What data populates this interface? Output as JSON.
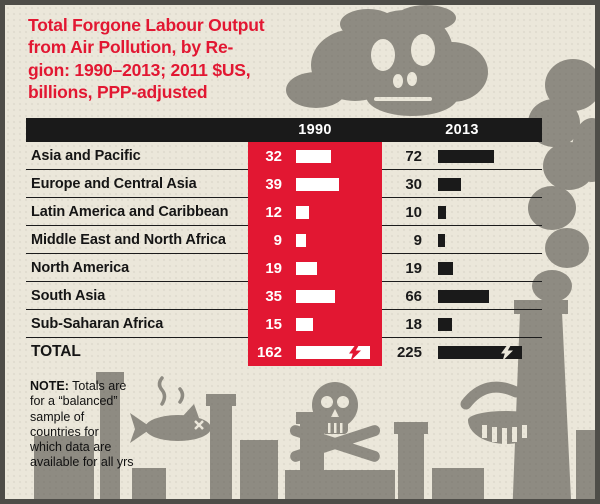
{
  "title_lines": [
    "Total Forgone Labour Output",
    "from Air Pollution, by Re-",
    "gion: 1990–2013; 2011 $US,",
    "billions, PPP-adjusted"
  ],
  "note": {
    "label": "NOTE:",
    "text": "Totals are for a “balanced” sample of countries for which data are available for all yrs"
  },
  "chart_data": {
    "type": "bar",
    "title": "Total Forgone Labour Output from Air Pollution, by Region: 1990–2013; 2011 $US, billions, PPP-adjusted",
    "columns": [
      "1990",
      "2013"
    ],
    "categories": [
      "Asia and Pacific",
      "Europe and Central Asia",
      "Latin America and Caribbean",
      "Middle East and North Africa",
      "North America",
      "South Asia",
      "Sub-Saharan Africa"
    ],
    "series": [
      {
        "name": "1990",
        "values": [
          32,
          39,
          12,
          9,
          19,
          35,
          15
        ]
      },
      {
        "name": "2013",
        "values": [
          72,
          30,
          10,
          9,
          19,
          66,
          18
        ]
      }
    ],
    "total": {
      "label": "TOTAL",
      "v1990": 162,
      "v2013": 225,
      "bars_truncated": true
    },
    "legend_position": "column headers",
    "grid": false
  },
  "icons": {
    "smoke_skull": "smoke-skull-icon",
    "skull_crossbones": "skull-crossbones-icon",
    "dead_fish": "dead-fish-icon",
    "drain": "drain-icon",
    "smokestacks": "smokestack-skyline",
    "smoke_plume": "smoke-plume-icon",
    "break_mark": "break-mark-icon"
  },
  "colors": {
    "red": "#e21732",
    "ink": "#1a1a1a",
    "paper": "#ebe7da",
    "gray": "#8e8b82",
    "white": "#ffffff",
    "border": "#4e4d48"
  }
}
